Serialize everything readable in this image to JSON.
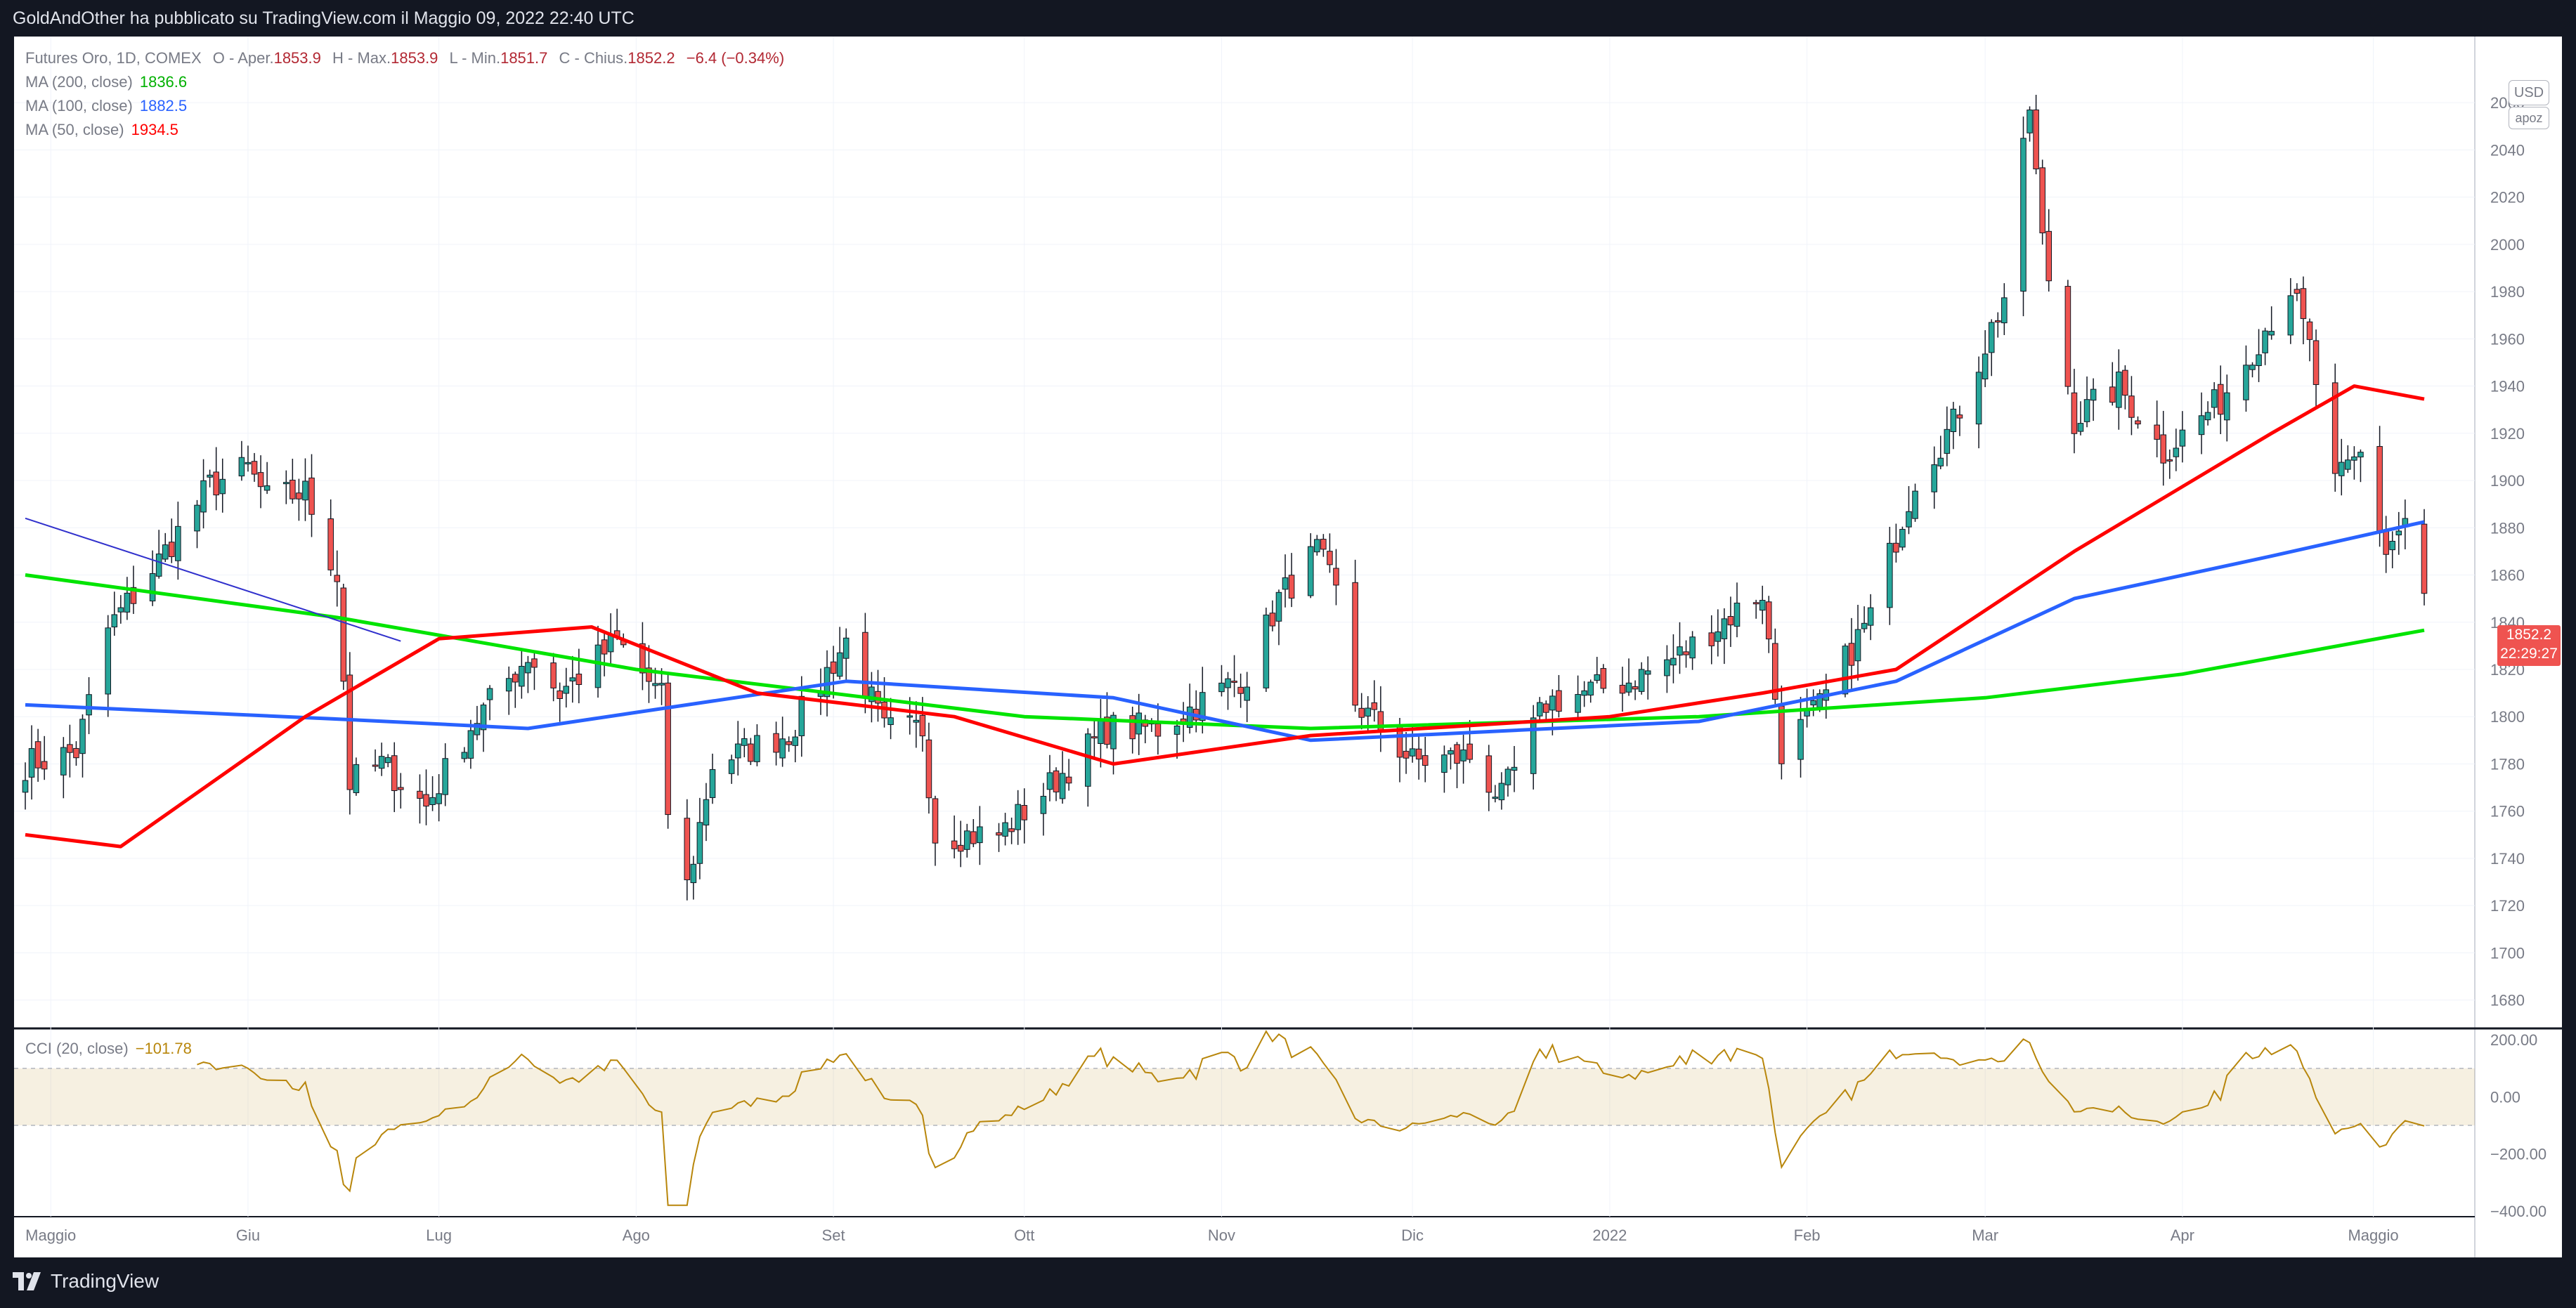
{
  "header": {
    "publish_text": "GoldAndOther ha pubblicato su TradingView.com il Maggio 09, 2022 22:40 UTC"
  },
  "footer": {
    "logo_text": "TradingView"
  },
  "legend": {
    "symbol": "Futures Oro, 1D, COMEX",
    "o_label": "O - Aper.",
    "o_value": "1853.9",
    "h_label": "H - Max.",
    "h_value": "1853.9",
    "l_label": "L - Min.",
    "l_value": "1851.7",
    "c_label": "C - Chius.",
    "c_value": "1852.2",
    "change": "−6.4 (−0.34%)",
    "ma200_label": "MA (200, close)",
    "ma200_value": "1836.6",
    "ma100_label": "MA (100, close)",
    "ma100_value": "1882.5",
    "ma50_label": "MA (50, close)",
    "ma50_value": "1934.5",
    "cci_label": "CCI (20, close)",
    "cci_value": "−101.78"
  },
  "scale": {
    "currency": "USD",
    "mode": "apoz"
  },
  "last_price_tag": {
    "price": "1852.2",
    "countdown": "22:29:27"
  },
  "colors": {
    "up": "#26a69a",
    "down": "#ef5350",
    "ma200": "#00e400",
    "ma100": "#2962ff",
    "ma50": "#ff0000",
    "cci": "#b8860b",
    "trendline": "#3030cc"
  },
  "chart_data": [
    {
      "type": "candlestick",
      "title": "Futures Oro, 1D, COMEX",
      "x_tick_labels": [
        "Maggio",
        "Giu",
        "Lug",
        "Ago",
        "Set",
        "Ott",
        "Nov",
        "Dic",
        "2022",
        "Feb",
        "Mar",
        "Apr",
        "Maggio"
      ],
      "y_tick_labels": [
        1680,
        1700,
        1720,
        1740,
        1760,
        1780,
        1800,
        1820,
        1840,
        1860,
        1880,
        1900,
        1920,
        1940,
        1960,
        1980,
        2000,
        2020,
        2040,
        2060
      ],
      "ylim": [
        1668,
        2088
      ],
      "anchor_closes": [
        [
          "2021-04-27",
          1780
        ],
        [
          "2021-05-05",
          1785
        ],
        [
          "2021-05-10",
          1837
        ],
        [
          "2021-05-18",
          1866
        ],
        [
          "2021-05-26",
          1898
        ],
        [
          "2021-06-01",
          1905
        ],
        [
          "2021-06-04",
          1892
        ],
        [
          "2021-06-10",
          1895
        ],
        [
          "2021-06-15",
          1860
        ],
        [
          "2021-06-17",
          1772
        ],
        [
          "2021-06-22",
          1780
        ],
        [
          "2021-06-29",
          1762
        ],
        [
          "2021-07-06",
          1796
        ],
        [
          "2021-07-15",
          1826
        ],
        [
          "2021-07-20",
          1810
        ],
        [
          "2021-07-29",
          1832
        ],
        [
          "2021-08-05",
          1808
        ],
        [
          "2021-08-06",
          1760
        ],
        [
          "2021-08-09",
          1728
        ],
        [
          "2021-08-13",
          1780
        ],
        [
          "2021-08-25",
          1793
        ],
        [
          "2021-09-03",
          1832
        ],
        [
          "2021-09-09",
          1794
        ],
        [
          "2021-09-15",
          1795
        ],
        [
          "2021-09-17",
          1750
        ],
        [
          "2021-09-27",
          1750
        ],
        [
          "2021-10-01",
          1760
        ],
        [
          "2021-10-14",
          1795
        ],
        [
          "2021-10-22",
          1795
        ],
        [
          "2021-11-05",
          1818
        ],
        [
          "2021-11-10",
          1850
        ],
        [
          "2021-11-16",
          1870
        ],
        [
          "2021-11-19",
          1852
        ],
        [
          "2021-11-22",
          1806
        ],
        [
          "2021-12-01",
          1781
        ],
        [
          "2021-12-10",
          1783
        ],
        [
          "2021-12-15",
          1765
        ],
        [
          "2021-12-22",
          1806
        ],
        [
          "2022-01-04",
          1815
        ],
        [
          "2022-01-12",
          1826
        ],
        [
          "2022-01-20",
          1843
        ],
        [
          "2022-01-25",
          1853
        ],
        [
          "2022-01-28",
          1786
        ],
        [
          "2022-02-03",
          1804
        ],
        [
          "2022-02-11",
          1843
        ],
        [
          "2022-02-18",
          1901
        ],
        [
          "2022-02-24",
          1924
        ],
        [
          "2022-03-04",
          1978
        ],
        [
          "2022-03-08",
          2058
        ],
        [
          "2022-03-10",
          2001
        ],
        [
          "2022-03-15",
          1926
        ],
        [
          "2022-03-22",
          1940
        ],
        [
          "2022-03-29",
          1912
        ],
        [
          "2022-04-07",
          1934
        ],
        [
          "2022-04-18",
          1982
        ],
        [
          "2022-04-21",
          1956
        ],
        [
          "2022-04-25",
          1898
        ],
        [
          "2022-04-29",
          1911
        ],
        [
          "2022-05-03",
          1870
        ],
        [
          "2022-05-06",
          1883
        ],
        [
          "2022-05-09",
          1852.2
        ]
      ],
      "series": [
        {
          "name": "MA (200, close)",
          "last": 1836.6,
          "anchors": [
            [
              "2021-04-27",
              1860
            ],
            [
              "2021-06-15",
              1842
            ],
            [
              "2021-08-01",
              1820
            ],
            [
              "2021-10-01",
              1800
            ],
            [
              "2021-11-15",
              1795
            ],
            [
              "2022-01-15",
              1800
            ],
            [
              "2022-03-01",
              1808
            ],
            [
              "2022-04-01",
              1818
            ],
            [
              "2022-05-09",
              1836.6
            ]
          ]
        },
        {
          "name": "MA (100, close)",
          "last": 1882.5,
          "anchors": [
            [
              "2021-04-27",
              1805
            ],
            [
              "2021-06-15",
              1799
            ],
            [
              "2021-07-15",
              1795
            ],
            [
              "2021-09-03",
              1815
            ],
            [
              "2021-10-15",
              1808
            ],
            [
              "2021-11-15",
              1790
            ],
            [
              "2022-01-15",
              1798
            ],
            [
              "2022-02-15",
              1815
            ],
            [
              "2022-03-15",
              1850
            ],
            [
              "2022-04-15",
              1868
            ],
            [
              "2022-05-09",
              1882.5
            ]
          ]
        },
        {
          "name": "MA (50, close)",
          "last": 1934.5,
          "anchors": [
            [
              "2021-04-27",
              1750
            ],
            [
              "2021-05-12",
              1745
            ],
            [
              "2021-06-10",
              1800
            ],
            [
              "2021-07-01",
              1833
            ],
            [
              "2021-07-25",
              1838
            ],
            [
              "2021-08-20",
              1810
            ],
            [
              "2021-09-20",
              1800
            ],
            [
              "2021-10-15",
              1780
            ],
            [
              "2021-11-15",
              1792
            ],
            [
              "2022-01-01",
              1800
            ],
            [
              "2022-01-25",
              1810
            ],
            [
              "2022-02-15",
              1820
            ],
            [
              "2022-03-15",
              1870
            ],
            [
              "2022-04-15",
              1920
            ],
            [
              "2022-04-28",
              1940
            ],
            [
              "2022-05-09",
              1934.5
            ]
          ]
        }
      ],
      "trendline": [
        [
          "2021-04-27",
          1884
        ],
        [
          "2021-06-25",
          1832
        ]
      ]
    },
    {
      "type": "line",
      "title": "CCI (20, close)",
      "y_tick_labels": [
        "200.00",
        "0.00",
        "−200.00",
        "−400.00"
      ],
      "ylim": [
        -420,
        240
      ],
      "bands": [
        -100,
        100
      ],
      "last": -101.78
    }
  ]
}
